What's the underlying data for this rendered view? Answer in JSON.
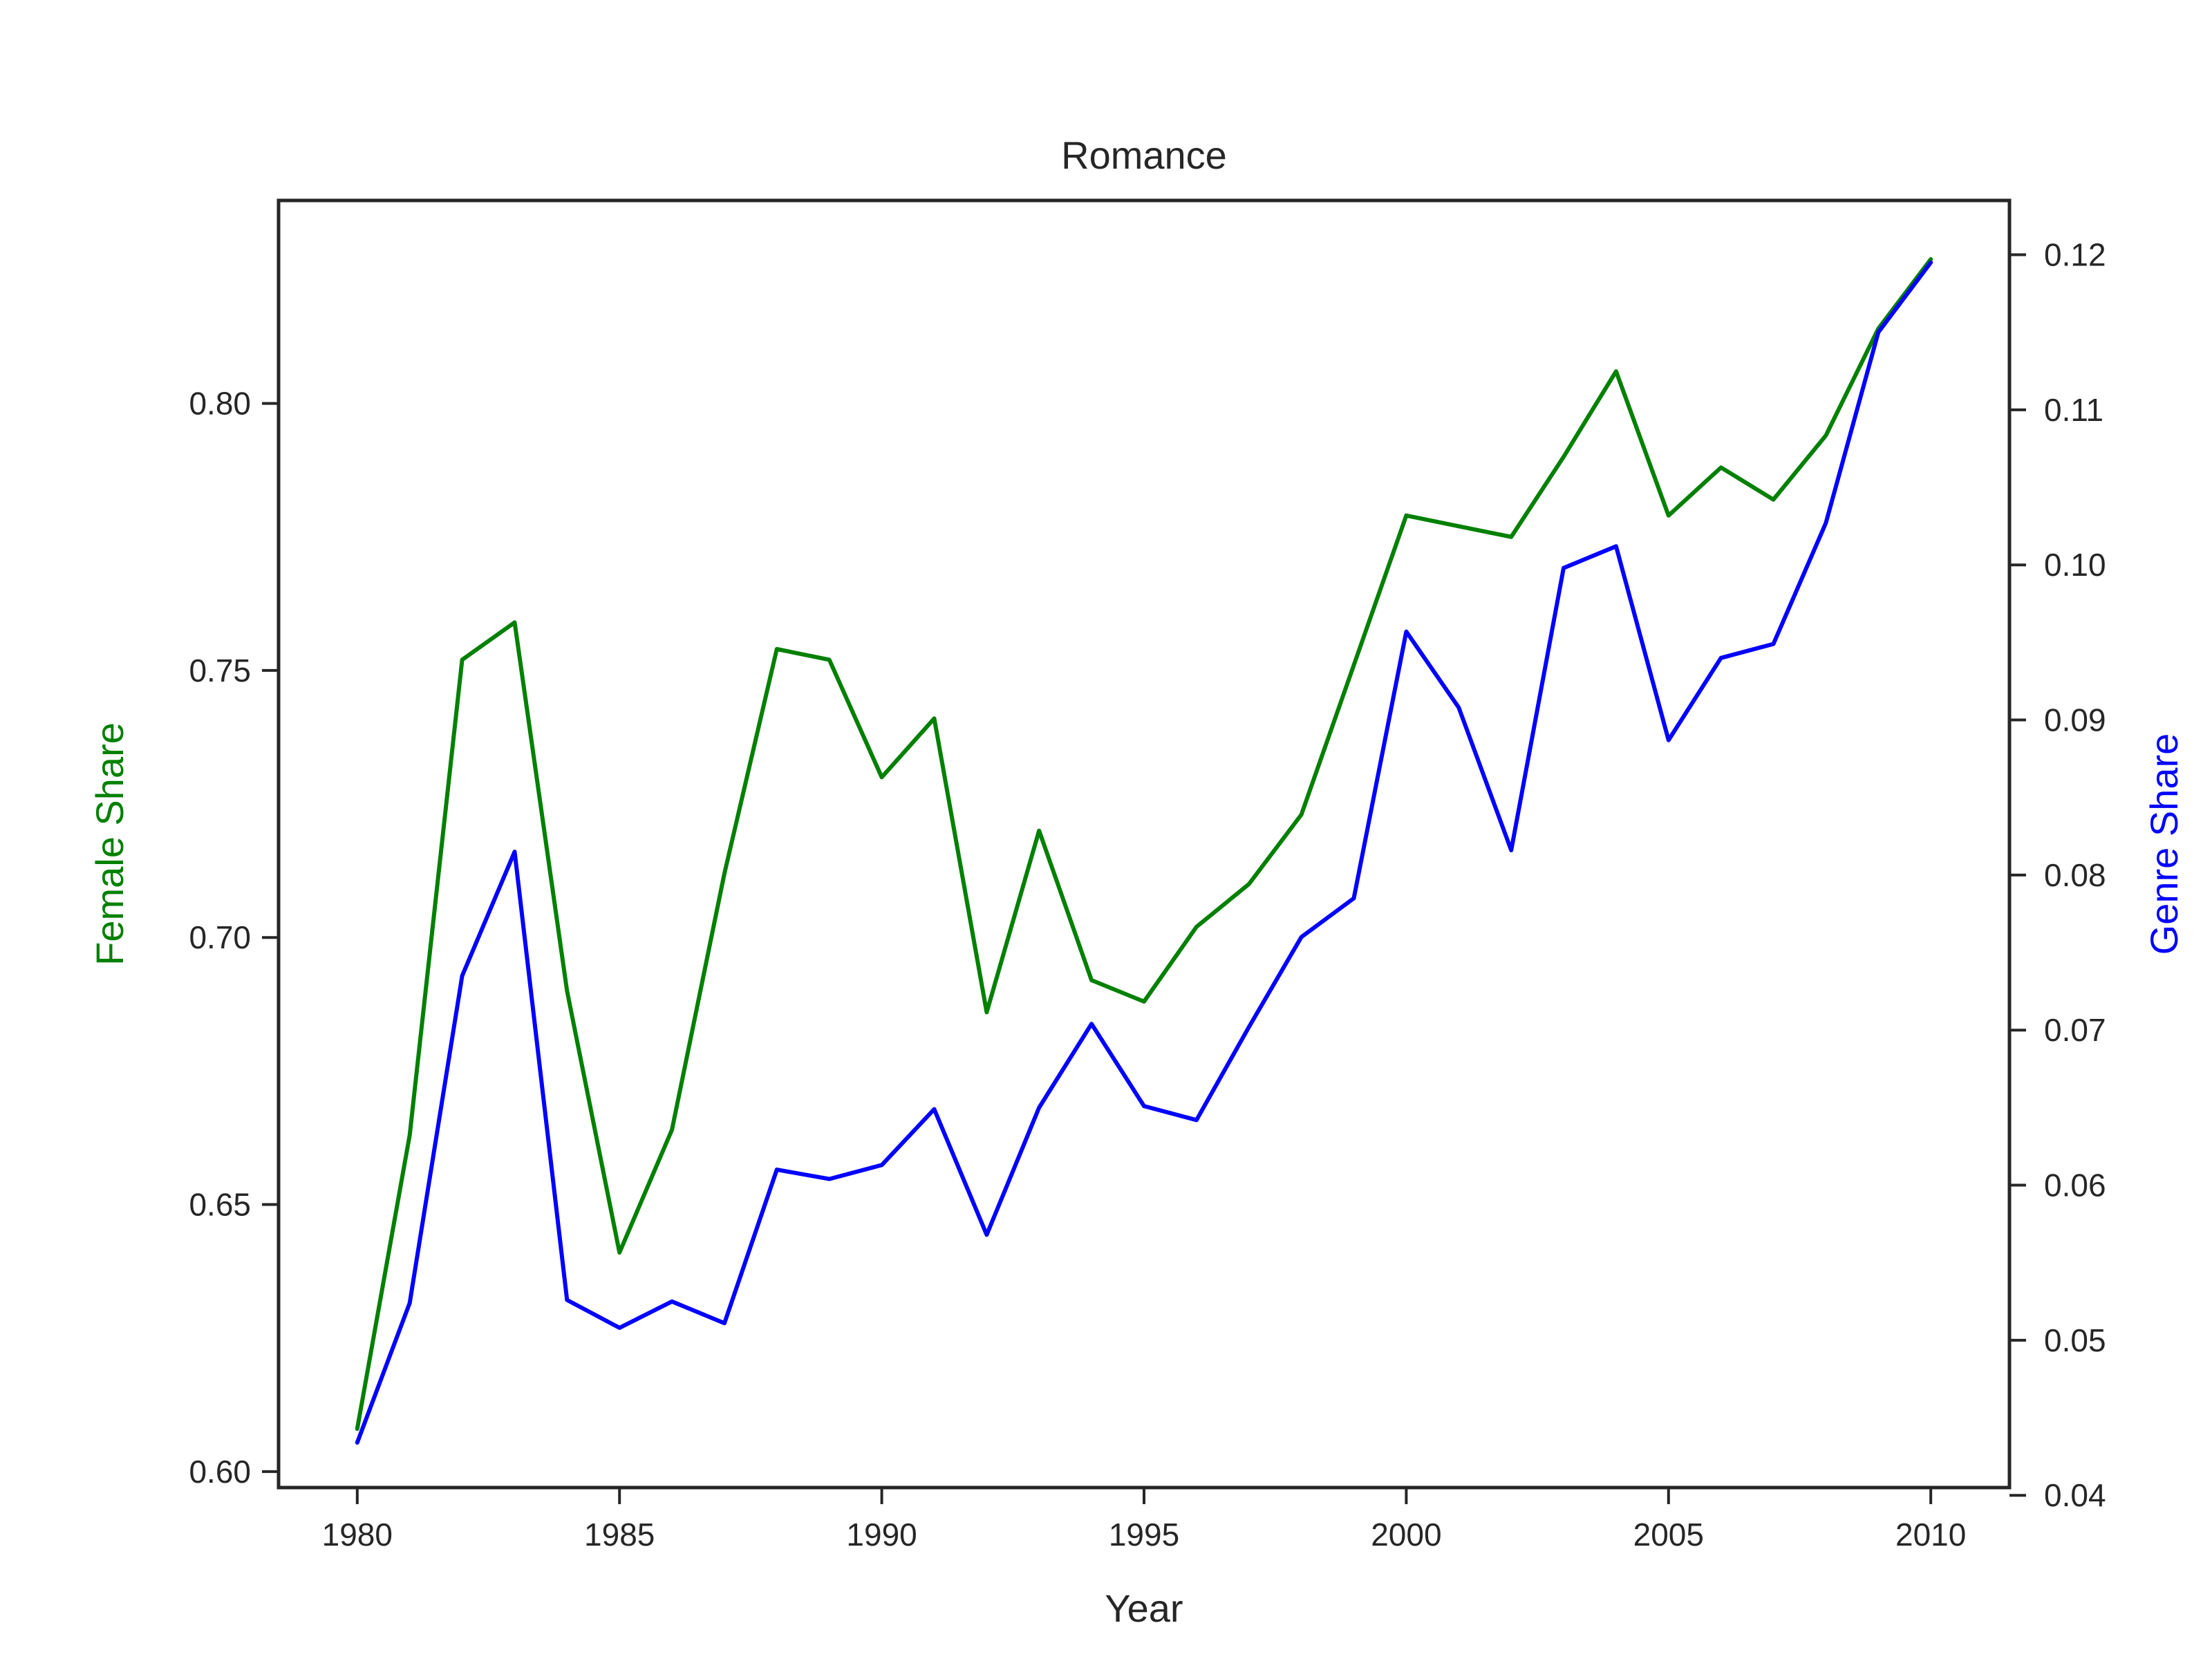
{
  "chart_data": {
    "type": "line",
    "title": "Romance",
    "xlabel": "Year",
    "ylabel_left": "Female Share",
    "ylabel_right": "Genre Share",
    "x": [
      1980,
      1981,
      1982,
      1983,
      1984,
      1985,
      1986,
      1987,
      1988,
      1989,
      1990,
      1991,
      1992,
      1993,
      1994,
      1995,
      1996,
      1997,
      1998,
      1999,
      2000,
      2001,
      2002,
      2003,
      2004,
      2005,
      2006,
      2007,
      2008,
      2009,
      2010
    ],
    "xlim": [
      1978.5,
      2011.5
    ],
    "xticks": [
      1980,
      1985,
      1990,
      1995,
      2000,
      2005,
      2010
    ],
    "ylim_left": [
      0.597,
      0.838
    ],
    "yticks_left": [
      "0.60",
      "0.65",
      "0.70",
      "0.75",
      "0.80"
    ],
    "ylim_right": [
      0.0405,
      0.1235
    ],
    "yticks_right": [
      "0.04",
      "0.05",
      "0.06",
      "0.07",
      "0.08",
      "0.09",
      "0.10",
      "0.11",
      "0.12"
    ],
    "grid": false,
    "series": [
      {
        "name": "Female Share",
        "axis": "left",
        "color": "#008000",
        "values": [
          0.608,
          0.663,
          0.752,
          0.759,
          0.69,
          0.641,
          0.664,
          0.712,
          0.754,
          0.752,
          0.73,
          0.741,
          0.686,
          0.72,
          0.692,
          0.688,
          0.702,
          0.71,
          0.723,
          0.751,
          0.779,
          0.777,
          0.775,
          0.79,
          0.806,
          0.779,
          0.788,
          0.782,
          0.794,
          0.814,
          0.827
        ]
      },
      {
        "name": "Genre Share",
        "axis": "right",
        "color": "#0000ff",
        "values": [
          0.0434,
          0.0524,
          0.0735,
          0.0815,
          0.0526,
          0.0508,
          0.0525,
          0.0511,
          0.061,
          0.0604,
          0.0613,
          0.0649,
          0.0568,
          0.065,
          0.0704,
          0.0651,
          0.0642,
          0.0702,
          0.076,
          0.0785,
          0.0957,
          0.0908,
          0.0816,
          0.0998,
          0.1012,
          0.0887,
          0.094,
          0.0949,
          0.1027,
          0.115,
          0.1195
        ]
      }
    ]
  }
}
